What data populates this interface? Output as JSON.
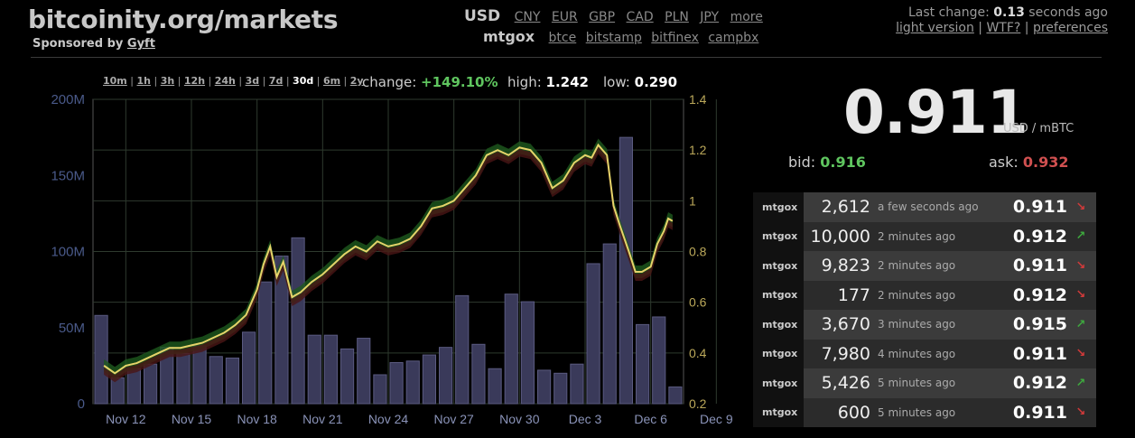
{
  "header": {
    "title": "bitcoinity.org/markets",
    "sponsor_prefix": "Sponsored by",
    "sponsor_name": "Gyft"
  },
  "currencies": {
    "active": "USD",
    "others": [
      "CNY",
      "EUR",
      "GBP",
      "CAD",
      "PLN",
      "JPY",
      "more"
    ]
  },
  "exchanges": {
    "active": "mtgox",
    "others": [
      "btce",
      "bitstamp",
      "bitfinex",
      "campbx"
    ]
  },
  "last_change": {
    "prefix": "Last change:",
    "value": "0.13",
    "suffix": "seconds ago",
    "links": [
      "light version",
      "WTF?",
      "preferences"
    ]
  },
  "ranges": {
    "items": [
      "10m",
      "1h",
      "3h",
      "12h",
      "24h",
      "3d",
      "7d",
      "30d",
      "6m",
      "2y"
    ],
    "selected": "30d"
  },
  "stats": {
    "change_label": "change:",
    "change_value": "+149.10%",
    "high_label": "high:",
    "high_value": "1.242",
    "low_label": "low:",
    "low_value": "0.290"
  },
  "price": {
    "value": "0.911",
    "unit": "USD / mBTC",
    "bid_label": "bid:",
    "bid_value": "0.916",
    "ask_label": "ask:",
    "ask_value": "0.932"
  },
  "trades": [
    {
      "exchange": "mtgox",
      "amount": "2,612",
      "time": "a few seconds ago",
      "price": "0.911",
      "dir": "down"
    },
    {
      "exchange": "mtgox",
      "amount": "10,000",
      "time": "2 minutes ago",
      "price": "0.912",
      "dir": "up"
    },
    {
      "exchange": "mtgox",
      "amount": "9,823",
      "time": "2 minutes ago",
      "price": "0.911",
      "dir": "down"
    },
    {
      "exchange": "mtgox",
      "amount": "177",
      "time": "2 minutes ago",
      "price": "0.912",
      "dir": "down"
    },
    {
      "exchange": "mtgox",
      "amount": "3,670",
      "time": "3 minutes ago",
      "price": "0.915",
      "dir": "up"
    },
    {
      "exchange": "mtgox",
      "amount": "7,980",
      "time": "4 minutes ago",
      "price": "0.911",
      "dir": "down"
    },
    {
      "exchange": "mtgox",
      "amount": "5,426",
      "time": "5 minutes ago",
      "price": "0.912",
      "dir": "up"
    },
    {
      "exchange": "mtgox",
      "amount": "600",
      "time": "5 minutes ago",
      "price": "0.911",
      "dir": "down"
    }
  ],
  "colors": {
    "up": "#3ea83e",
    "down": "#d03a3a",
    "price_line": "#e6d36a",
    "volume_bar": "#3a3a5a",
    "left_axis": "#4a5a8a",
    "right_axis": "#bba85a"
  },
  "chart_data": {
    "type": "bar",
    "x_ticks": [
      "Nov 12",
      "Nov 15",
      "Nov 18",
      "Nov 21",
      "Nov 24",
      "Nov 27",
      "Nov 30",
      "Dec 3",
      "Dec 6",
      "Dec 9"
    ],
    "left_axis_ticks": [
      "0",
      "50M",
      "100M",
      "150M",
      "200M"
    ],
    "right_axis_ticks": [
      "0.2",
      "0.4",
      "0.6",
      "0.8",
      "1",
      "1.2",
      "1.4"
    ],
    "ylim_left": [
      0,
      200000000
    ],
    "ylim_right": [
      0.2,
      1.4
    ],
    "grid": true,
    "series": [
      {
        "kind": "volume_bars",
        "values": [
          58000000,
          17000000,
          23000000,
          26000000,
          37000000,
          33000000,
          38000000,
          31000000,
          30000000,
          47000000,
          80000000,
          97000000,
          109000000,
          45000000,
          45000000,
          36000000,
          43000000,
          19000000,
          27000000,
          28000000,
          32000000,
          37000000,
          71000000,
          39000000,
          23000000,
          72000000,
          67000000,
          22000000,
          20000000,
          26000000,
          92000000,
          105000000,
          175000000,
          52000000,
          57000000,
          11000000
        ]
      },
      {
        "kind": "price_line",
        "x": [
          11.0,
          11.5,
          12.0,
          12.5,
          13.0,
          13.5,
          14.0,
          14.5,
          15.0,
          15.5,
          16.0,
          16.5,
          17.0,
          17.5,
          18.0,
          18.3,
          18.6,
          18.9,
          19.2,
          19.6,
          20.0,
          20.5,
          21.0,
          21.5,
          22.0,
          22.5,
          23.0,
          23.5,
          24.0,
          24.5,
          25.0,
          25.5,
          26.0,
          26.5,
          27.0,
          27.5,
          28.0,
          28.5,
          29.0,
          29.5,
          30.0,
          30.5,
          31.0,
          31.5,
          32.0,
          32.5,
          33.0,
          33.3,
          33.6,
          34.0,
          34.3,
          34.6,
          35.0,
          35.3,
          35.6,
          36.0,
          36.3,
          36.6,
          36.8,
          37.0
        ],
        "values": [
          0.35,
          0.32,
          0.35,
          0.36,
          0.38,
          0.4,
          0.42,
          0.42,
          0.43,
          0.44,
          0.46,
          0.48,
          0.51,
          0.55,
          0.65,
          0.75,
          0.82,
          0.7,
          0.76,
          0.62,
          0.64,
          0.68,
          0.71,
          0.75,
          0.79,
          0.82,
          0.8,
          0.84,
          0.82,
          0.83,
          0.85,
          0.9,
          0.97,
          0.98,
          1.0,
          1.05,
          1.1,
          1.18,
          1.2,
          1.18,
          1.21,
          1.2,
          1.15,
          1.05,
          1.08,
          1.15,
          1.18,
          1.17,
          1.22,
          1.18,
          0.98,
          0.9,
          0.8,
          0.72,
          0.72,
          0.74,
          0.83,
          0.88,
          0.93,
          0.92
        ]
      }
    ]
  }
}
